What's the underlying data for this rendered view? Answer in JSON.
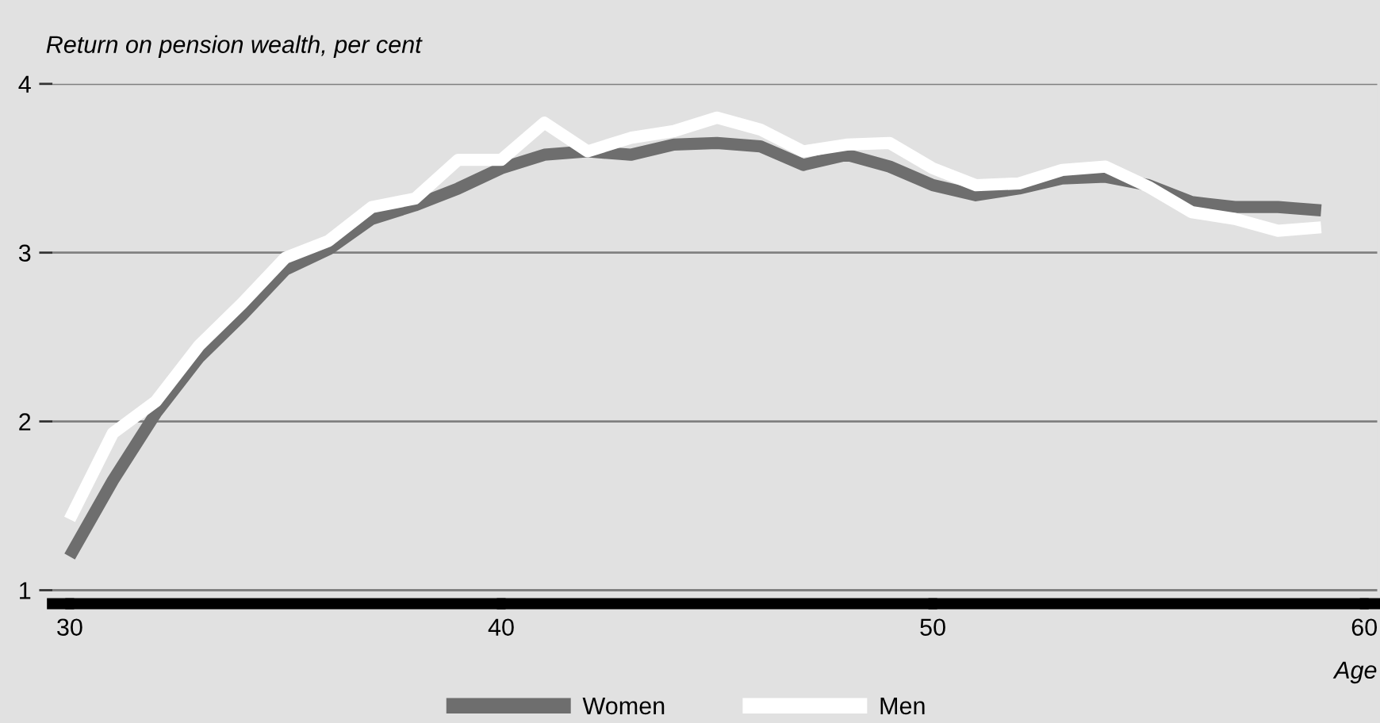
{
  "chart_data": {
    "type": "line",
    "ylabel": "Return on pension wealth, per cent",
    "xlabel": "Age",
    "x": [
      30,
      31,
      32,
      33,
      34,
      35,
      36,
      37,
      38,
      39,
      40,
      41,
      42,
      43,
      44,
      45,
      46,
      47,
      48,
      49,
      50,
      51,
      52,
      53,
      54,
      55,
      56,
      57,
      58,
      59
    ],
    "series": [
      {
        "name": "Women",
        "color": "#6e6e6e",
        "values": [
          1.2,
          1.65,
          2.05,
          2.38,
          2.63,
          2.9,
          3.02,
          3.2,
          3.28,
          3.38,
          3.5,
          3.58,
          3.6,
          3.58,
          3.64,
          3.65,
          3.63,
          3.52,
          3.58,
          3.51,
          3.4,
          3.34,
          3.38,
          3.44,
          3.45,
          3.4,
          3.3,
          3.27,
          3.27,
          3.25
        ]
      },
      {
        "name": "Men",
        "color": "#ffffff",
        "values": [
          1.42,
          1.93,
          2.12,
          2.45,
          2.7,
          2.97,
          3.07,
          3.27,
          3.32,
          3.55,
          3.55,
          3.77,
          3.6,
          3.68,
          3.72,
          3.8,
          3.73,
          3.6,
          3.64,
          3.65,
          3.5,
          3.4,
          3.41,
          3.49,
          3.51,
          3.39,
          3.24,
          3.2,
          3.13,
          3.15
        ]
      }
    ],
    "xlim": [
      29.6,
      60.3
    ],
    "xticks": [
      30,
      40,
      50,
      60
    ],
    "ylim": [
      0.92,
      4
    ],
    "yticks": [
      1,
      2,
      3,
      4
    ],
    "grid": "y",
    "legend": "bottom",
    "marker": "none",
    "line_style": "solid"
  }
}
